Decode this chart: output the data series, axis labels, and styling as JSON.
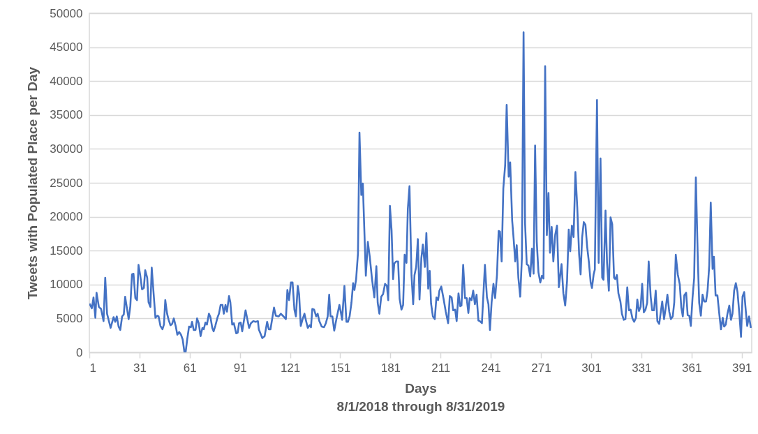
{
  "chart_data": {
    "type": "line",
    "xlabel": "Days",
    "ylabel": "Tweets with Populated Place per Day",
    "annotations": [
      "8/1/2018 through 8/31/2019"
    ],
    "x": [
      1.1,
      2.5,
      3.5,
      4.6,
      5.3,
      6.7,
      8,
      9.5,
      10.5,
      11.6,
      13.7,
      15.5,
      16.5,
      17.4,
      18.5,
      19.5,
      20.6,
      21.6,
      22.4,
      24.5,
      25.5,
      26.5,
      27.4,
      28.5,
      29.5,
      30.4,
      31.4,
      32.5,
      33.6,
      34.4,
      35.6,
      36.4,
      37.5,
      38.3,
      39.6,
      40.5,
      41.6,
      42.4,
      43.5,
      44.7,
      45.6,
      46.4,
      47.5,
      48.4,
      49.5,
      50.5,
      51.5,
      52.7,
      53.6,
      54.7,
      55.8,
      56.8,
      57.8,
      58.6,
      59.5,
      60.6,
      61.7,
      62.4,
      63.4,
      64.5,
      65.4,
      66.4,
      67.5,
      68.6,
      69.4,
      70.4,
      71.3,
      72.5,
      73.4,
      74.5,
      75.3,
      76.3,
      77.7,
      78.5,
      79.5,
      80.6,
      81.4,
      82.4,
      83.3,
      84.5,
      85.3,
      86.4,
      87.4,
      88.8,
      89.7,
      90.5,
      91.5,
      92.4,
      94.4,
      96.5,
      97.6,
      99,
      100.4,
      101.8,
      102.3,
      104.4,
      105.8,
      107.3,
      108.3,
      109.3,
      111.4,
      112.5,
      114.2,
      115.5,
      117.1,
      118.5,
      119.4,
      120.4,
      121.5,
      122.5,
      123.6,
      124.5,
      125.6,
      126.4,
      127.4,
      128.5,
      129.6,
      130.6,
      131.6,
      132.7,
      133.5,
      134.3,
      135.4,
      136.6,
      137.5,
      138.5,
      139.9,
      141.3,
      142.4,
      143.5,
      144.4,
      145.2,
      146.3,
      147.4,
      148.7,
      150.5,
      151.3,
      152.1,
      153.5,
      154.7,
      155.6,
      156.6,
      157.7,
      158.7,
      159.5,
      160.5,
      161.6,
      162.5,
      163.6,
      164.5,
      166.3,
      167.5,
      168.6,
      170,
      171.4,
      172.6,
      173.4,
      174.4,
      175.5,
      176.6,
      177.8,
      178.9,
      179.7,
      180.7,
      181.7,
      182.6,
      183.3,
      184.4,
      185.6,
      186.5,
      187.6,
      188.6,
      189.5,
      190.6,
      191.4,
      192.4,
      193.6,
      194.6,
      195.4,
      196.4,
      197.4,
      198.4,
      199.5,
      200.4,
      201.6,
      202.5,
      203.6,
      204.5,
      205.3,
      206.4,
      207.5,
      208.5,
      209.5,
      210.3,
      211.4,
      212.7,
      214.1,
      215.5,
      216.5,
      217.6,
      218.5,
      219.7,
      220.6,
      221.7,
      222.7,
      223.5,
      224.5,
      225.6,
      226.6,
      227.6,
      228.4,
      229.5,
      230.5,
      231.5,
      232.5,
      233.6,
      234.5,
      235.7,
      237.5,
      238.7,
      239.6,
      240.5,
      241.5,
      242.6,
      243.6,
      244.7,
      245.7,
      246.5,
      247.5,
      248.5,
      249.6,
      250.5,
      251.7,
      252.6,
      253.8,
      254.7,
      255.6,
      256.5,
      257.5,
      258.6,
      259.6,
      260.6,
      261.5,
      262.5,
      263.5,
      264.6,
      265.6,
      266.6,
      267.5,
      268.5,
      269.5,
      270.6,
      271.6,
      272.5,
      273.5,
      274.5,
      275.5,
      276.4,
      277.4,
      278.4,
      279.5,
      280.6,
      281.7,
      283.3,
      284.4,
      285.5,
      286.6,
      287.6,
      288.5,
      289.5,
      290.5,
      291.6,
      292.7,
      293.8,
      294.7,
      295.6,
      296.6,
      297.6,
      298.6,
      299.7,
      300.7,
      301.5,
      302.5,
      303.2,
      304.5,
      305.5,
      306.6,
      307.6,
      308.4,
      309.6,
      310.5,
      311.6,
      312.6,
      313.6,
      314.7,
      315.4,
      316.4,
      317.3,
      318.5,
      319.4,
      320.5,
      321.5,
      322.6,
      323.6,
      324.6,
      325.7,
      326.7,
      327.8,
      328.6,
      329.6,
      330.6,
      331.5,
      332.5,
      333.5,
      334.5,
      335.4,
      336.6,
      337.5,
      338.6,
      339.6,
      340.6,
      341.7,
      342.5,
      343.5,
      344.6,
      345.6,
      346.6,
      347.7,
      348.7,
      349.8,
      350.7,
      351.6,
      352.8,
      354,
      354.9,
      355.8,
      356.7,
      357.8,
      358.7,
      359.7,
      360.6,
      361.6,
      362.6,
      363.6,
      364.8,
      365.6,
      366.6,
      367.6,
      368.6,
      369.7,
      370.6,
      371.6,
      372.5,
      373.6,
      374.4,
      375.4,
      376.5,
      377.6,
      378.6,
      379.7,
      380.5,
      381.5,
      382.5,
      383.6,
      384.6,
      385.5,
      386.5,
      387.5,
      388.5,
      389.6,
      390.6,
      391.5,
      392.5,
      393.5,
      394.3,
      395.4,
      396.5
    ],
    "series": [
      {
        "color": "#4472c4",
        "values": [
          7200,
          6500,
          8100,
          5100,
          8800,
          6700,
          6400,
          4600,
          11000,
          5700,
          3600,
          5200,
          4500,
          5300,
          3800,
          3300,
          5300,
          5600,
          8200,
          4900,
          6800,
          11500,
          11600,
          8000,
          7700,
          12900,
          11400,
          9300,
          9500,
          12100,
          11000,
          7400,
          6700,
          12500,
          8100,
          5100,
          5400,
          5300,
          3900,
          3400,
          4100,
          7700,
          5700,
          4800,
          4000,
          4200,
          5000,
          3800,
          2600,
          3000,
          2600,
          1900,
          100,
          100,
          1900,
          3800,
          3700,
          4500,
          3300,
          3300,
          5000,
          4300,
          2400,
          3600,
          3400,
          4400,
          4100,
          5700,
          5200,
          3600,
          3100,
          3900,
          5200,
          5700,
          7000,
          7000,
          5700,
          7000,
          6000,
          8300,
          7400,
          4100,
          4300,
          2800,
          2900,
          4300,
          4400,
          3100,
          6200,
          3600,
          4300,
          4600,
          4500,
          4600,
          3400,
          2100,
          2400,
          4500,
          3400,
          3400,
          6600,
          5400,
          5300,
          5700,
          5300,
          4900,
          9200,
          7700,
          10300,
          10300,
          6300,
          5300,
          9800,
          8600,
          3900,
          4900,
          5700,
          4600,
          3600,
          4000,
          3700,
          6400,
          6300,
          5300,
          5700,
          4600,
          3800,
          3700,
          4300,
          5300,
          8500,
          5300,
          5300,
          3200,
          4900,
          7000,
          6000,
          4800,
          9800,
          4500,
          4500,
          5300,
          7300,
          10200,
          9200,
          10800,
          14600,
          32400,
          23200,
          24900,
          11300,
          16300,
          14200,
          10800,
          8100,
          12700,
          7300,
          5700,
          8200,
          8600,
          10100,
          9800,
          7700,
          21600,
          18000,
          10800,
          13100,
          13400,
          13400,
          7900,
          6300,
          7000,
          14400,
          13200,
          21100,
          24500,
          11400,
          7100,
          11400,
          12600,
          16700,
          7800,
          13900,
          15900,
          12600,
          17600,
          9400,
          12000,
          7200,
          5300,
          4900,
          8100,
          7700,
          9100,
          9700,
          8000,
          6000,
          4300,
          8300,
          8100,
          6200,
          6300,
          4600,
          8700,
          6800,
          6900,
          12900,
          8000,
          8000,
          5800,
          8000,
          7700,
          9100,
          7100,
          8500,
          4700,
          4600,
          4300,
          12900,
          8100,
          7100,
          3300,
          7400,
          10100,
          8000,
          11400,
          17900,
          17800,
          13400,
          24200,
          27600,
          36500,
          25900,
          28000,
          19400,
          16600,
          13400,
          15800,
          11000,
          8200,
          13900,
          47200,
          19000,
          13000,
          12800,
          11200,
          15300,
          11600,
          30500,
          16300,
          11800,
          10300,
          11300,
          10900,
          42200,
          17300,
          23500,
          14700,
          18500,
          13400,
          17300,
          18700,
          9600,
          13000,
          8700,
          6900,
          10500,
          18100,
          14900,
          18700,
          17000,
          26600,
          21400,
          14500,
          11500,
          16900,
          19200,
          18800,
          15600,
          13200,
          10300,
          9500,
          11500,
          12200,
          37200,
          13200,
          28600,
          11000,
          10700,
          20900,
          13200,
          9100,
          19900,
          18900,
          11000,
          10800,
          11400,
          8700,
          7500,
          5700,
          4800,
          4900,
          9600,
          6200,
          6300,
          5000,
          4500,
          5100,
          7800,
          6100,
          6700,
          10100,
          5900,
          6300,
          7300,
          13400,
          8200,
          6200,
          6200,
          9100,
          4600,
          4200,
          5700,
          7500,
          4900,
          6600,
          8500,
          6000,
          4900,
          5300,
          7400,
          14400,
          11500,
          10000,
          6600,
          5300,
          8400,
          8800,
          5500,
          5400,
          3900,
          8000,
          11000,
          25800,
          13500,
          7300,
          5400,
          8500,
          7500,
          7500,
          9100,
          12800,
          22100,
          12300,
          14100,
          8400,
          8400,
          5700,
          3400,
          5100,
          3800,
          4100,
          5700,
          6900,
          4800,
          5700,
          9100,
          10200,
          8900,
          5700,
          2300,
          8200,
          8900,
          6000,
          3900,
          5300,
          3600
        ]
      }
    ],
    "xlim": [
      1,
      397
    ],
    "xticks": [
      1,
      31,
      61,
      91,
      121,
      151,
      181,
      211,
      241,
      271,
      301,
      331,
      361,
      391
    ],
    "ylim": [
      0,
      50000
    ],
    "yticks": [
      0,
      5000,
      10000,
      15000,
      20000,
      25000,
      30000,
      35000,
      40000,
      45000,
      50000
    ],
    "grid": "y"
  }
}
